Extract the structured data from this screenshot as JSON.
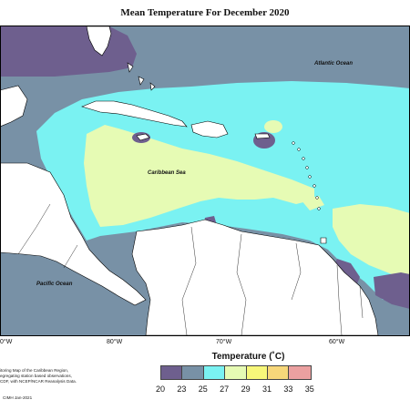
{
  "title": "Mean Temperature For December 2020",
  "labels": {
    "atlantic": "Atlantic Ocean",
    "caribbean": "Caribbean Sea",
    "pacific": "Pacific Ocean"
  },
  "longitude_ticks": [
    "0°W",
    "80°W",
    "70°W",
    "60°W"
  ],
  "legend": {
    "title": "Temperature (˚C)",
    "values": [
      "20",
      "23",
      "25",
      "27",
      "29",
      "31",
      "33",
      "35"
    ],
    "colors": [
      "#6e5f8e",
      "#7891a6",
      "#7af2f2",
      "#e6fbb4",
      "#f7f77a",
      "#f7d77a",
      "#f5b896",
      "#eba0a0"
    ]
  },
  "credits": [
    "itoring Map of the Caribbean Region,",
    "egregating station based observations,",
    "CDF, with NCEP/NCAR Reanalysis Data."
  ],
  "footer": "CIMH Jan-2021"
}
